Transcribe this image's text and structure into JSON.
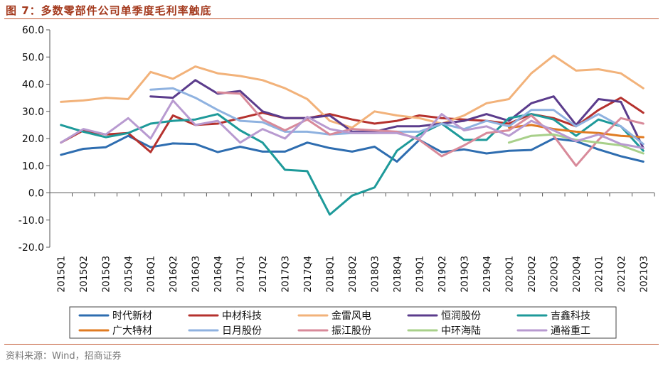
{
  "figure": {
    "title": "图 7：多数零部件公司单季度毛利率触底",
    "source": "资料来源：Wind，招商证券"
  },
  "chart_data": {
    "type": "line",
    "title": "",
    "xlabel": "",
    "ylabel": "",
    "ylim": [
      -20,
      60
    ],
    "y_ticks": [
      "60.0",
      "50.0",
      "40.0",
      "30.0",
      "20.0",
      "10.0",
      "0.0",
      "-10.0",
      "-20.0"
    ],
    "grid": false,
    "legend_position": "bottom",
    "categories": [
      "2015Q1",
      "2015Q2",
      "2015Q3",
      "2015Q4",
      "2016Q1",
      "2016Q2",
      "2016Q3",
      "2016Q4",
      "2017Q1",
      "2017Q2",
      "2017Q3",
      "2017Q4",
      "2018Q1",
      "2018Q2",
      "2018Q3",
      "2018Q4",
      "2019Q1",
      "2019Q2",
      "2019Q3",
      "2019Q4",
      "2020Q1",
      "2020Q2",
      "2020Q3",
      "2020Q4",
      "2021Q1",
      "2021Q2",
      "2021Q3"
    ],
    "series": [
      {
        "name": "时代新材",
        "color": "#2e6db0",
        "values": [
          14,
          16.2,
          16.8,
          21,
          16.8,
          18.2,
          18,
          15,
          17,
          15.2,
          15.2,
          18.5,
          16.5,
          15.2,
          17,
          11.5,
          19.5,
          15,
          16,
          14.5,
          15.5,
          15.8,
          20,
          19,
          16,
          13.5,
          11.5
        ]
      },
      {
        "name": "中材科技",
        "color": "#b5322e",
        "values": [
          18.5,
          23,
          21.5,
          22,
          15,
          28.5,
          25,
          25.5,
          27.5,
          29.5,
          27.5,
          27.5,
          29,
          27,
          25.5,
          26.5,
          28.5,
          27.5,
          27,
          26.5,
          25.5,
          29,
          27.5,
          24.5,
          30.5,
          35,
          29.5
        ]
      },
      {
        "name": "金雷风电",
        "color": "#f2b27a",
        "values": [
          33.5,
          34,
          35,
          34.5,
          44.5,
          42,
          46.5,
          44,
          43,
          41.5,
          38.5,
          34.5,
          26.5,
          24,
          30,
          28.5,
          27.5,
          25.5,
          28.5,
          33,
          34.5,
          44,
          50.5,
          45,
          45.5,
          44,
          38.5
        ]
      },
      {
        "name": "恒润股份",
        "color": "#5b3c8c",
        "values": [
          null,
          null,
          null,
          null,
          35.5,
          35,
          41.5,
          36.5,
          37.5,
          30,
          27.5,
          27.5,
          28.5,
          22.5,
          22.5,
          24.5,
          24.5,
          25.5,
          26.5,
          29,
          26.5,
          33,
          35.5,
          25,
          34.5,
          33.5,
          16.5
        ]
      },
      {
        "name": "吉鑫科技",
        "color": "#1e9a9a",
        "values": [
          25,
          22.5,
          20.5,
          22,
          25.5,
          26.5,
          27,
          29,
          23,
          18.5,
          8.5,
          8,
          -8,
          -1,
          2,
          15.5,
          21.5,
          25.5,
          19.5,
          19.5,
          27.5,
          29,
          27,
          21,
          27,
          24.5,
          15.5
        ]
      },
      {
        "name": "广大特材",
        "color": "#e07b22",
        "values": [
          null,
          null,
          null,
          null,
          null,
          null,
          null,
          null,
          null,
          null,
          null,
          null,
          null,
          null,
          null,
          null,
          null,
          null,
          null,
          null,
          24,
          25,
          23.5,
          22.5,
          22,
          21,
          20.5
        ]
      },
      {
        "name": "日月股份",
        "color": "#8fb2e0",
        "values": [
          null,
          null,
          null,
          null,
          38,
          38.5,
          35,
          30.5,
          26.5,
          26,
          22.5,
          22.5,
          21.5,
          22,
          22,
          22.5,
          22.5,
          25.5,
          23.5,
          26.5,
          24.5,
          30.5,
          30.5,
          24.5,
          29,
          24.5,
          18
        ]
      },
      {
        "name": "振江股份",
        "color": "#d88a9a",
        "values": [
          null,
          null,
          null,
          null,
          null,
          null,
          null,
          37,
          36.5,
          27,
          23,
          27,
          21.5,
          23.5,
          23,
          22.5,
          19.5,
          13.5,
          17.5,
          22,
          23,
          28.5,
          21,
          10,
          19.5,
          27.5,
          25.5
        ]
      },
      {
        "name": "中环海陆",
        "color": "#a8d08a",
        "values": [
          null,
          null,
          null,
          null,
          null,
          null,
          null,
          null,
          null,
          null,
          null,
          null,
          null,
          null,
          null,
          null,
          null,
          null,
          null,
          null,
          18.5,
          21,
          21.5,
          19.5,
          18.5,
          17.5,
          14.5
        ]
      },
      {
        "name": "通裕重工",
        "color": "#b89ad0",
        "values": [
          18.5,
          23.5,
          21.5,
          27.5,
          20,
          34,
          25,
          26.5,
          18.5,
          23.5,
          20,
          28,
          23.5,
          22,
          22,
          22,
          20,
          29,
          23,
          24.5,
          21,
          26.5,
          23,
          19,
          21.5,
          18,
          16.5
        ]
      }
    ]
  }
}
